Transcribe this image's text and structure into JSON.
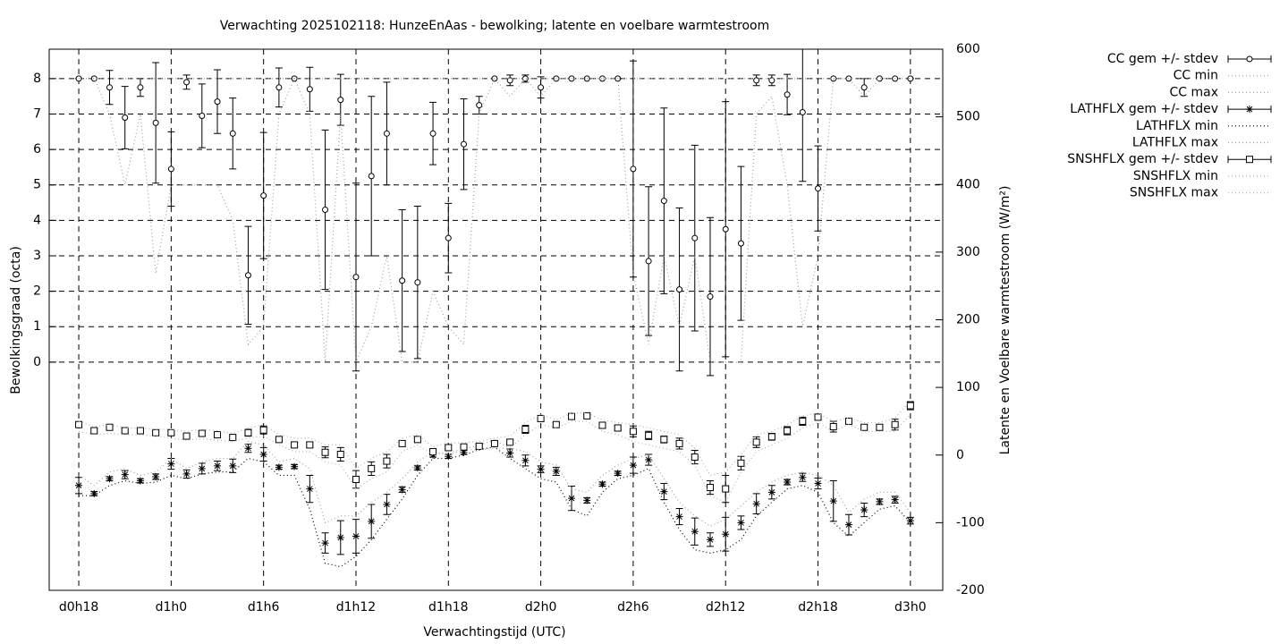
{
  "chart_data": {
    "type": "errorbar",
    "title": "Verwachting 2025102118: HunzeEnAas - bewolking; latente en voelbare warmtestroom",
    "xlabel": "Verwachtingstijd (UTC)",
    "ylabel": "Bewolkingsgraad (octa)",
    "y2label": "Latente en Voelbare warmtestroom (W/m²)",
    "grid": true,
    "legend": "outside-right",
    "xlim": [
      16.08,
      74.1
    ],
    "ylim": [
      -6.44,
      8.83
    ],
    "y2lim": [
      -200,
      600
    ],
    "xticks": [
      {
        "value": 18,
        "label": "d0h18"
      },
      {
        "value": 24,
        "label": "d1h0"
      },
      {
        "value": 30,
        "label": "d1h6"
      },
      {
        "value": 36,
        "label": "d1h12"
      },
      {
        "value": 42,
        "label": "d1h18"
      },
      {
        "value": 48,
        "label": "d2h0"
      },
      {
        "value": 54,
        "label": "d2h6"
      },
      {
        "value": 60,
        "label": "d2h12"
      },
      {
        "value": 66,
        "label": "d2h18"
      },
      {
        "value": 72,
        "label": "d3h0"
      }
    ],
    "yticks": [
      0,
      1,
      2,
      3,
      4,
      5,
      6,
      7,
      8
    ],
    "y2ticks": [
      -200,
      -100,
      0,
      100,
      200,
      300,
      400,
      500,
      600
    ],
    "x": [
      18,
      19,
      20,
      21,
      22,
      23,
      24,
      25,
      26,
      27,
      28,
      29,
      30,
      31,
      32,
      33,
      34,
      35,
      36,
      37,
      38,
      39,
      40,
      41,
      42,
      43,
      44,
      45,
      46,
      47,
      48,
      49,
      50,
      51,
      52,
      53,
      54,
      55,
      56,
      57,
      58,
      59,
      60,
      61,
      62,
      63,
      64,
      65,
      66,
      67,
      68,
      69,
      70,
      71,
      72
    ],
    "series": [
      {
        "name": "CC gem +/- stdev",
        "color": "#000000",
        "axis": "y",
        "style": "errorbars",
        "marker": "circle",
        "values": [
          8,
          8,
          7.75,
          6.9,
          7.75,
          6.75,
          5.45,
          7.9,
          6.95,
          7.35,
          6.45,
          2.45,
          4.7,
          7.75,
          8,
          7.7,
          4.3,
          7.4,
          2.4,
          5.25,
          6.45,
          2.3,
          2.25,
          6.45,
          3.5,
          6.15,
          7.25,
          8,
          7.95,
          8,
          7.75,
          8,
          8,
          8,
          8,
          8,
          5.45,
          2.85,
          4.55,
          2.05,
          3.5,
          1.85,
          3.75,
          3.35,
          7.95,
          7.95,
          7.55,
          7.05,
          4.9,
          8,
          8,
          7.75,
          8,
          8,
          8
        ],
        "errors": [
          0,
          0,
          0.48,
          0.88,
          0.25,
          1.7,
          1.05,
          0.2,
          0.9,
          0.9,
          1.0,
          1.38,
          1.78,
          0.55,
          0,
          0.62,
          2.25,
          0.72,
          2.65,
          2.25,
          1.45,
          2.0,
          2.15,
          0.88,
          0.98,
          1.28,
          0.25,
          0,
          0.15,
          0.1,
          0.3,
          0,
          0,
          0,
          0,
          0,
          3.05,
          2.1,
          2.62,
          2.3,
          2.62,
          2.23,
          3.6,
          2.17,
          0.15,
          0.15,
          0.57,
          1.95,
          1.2,
          0,
          0,
          0.25,
          0,
          0,
          0
        ]
      },
      {
        "name": "CC min",
        "color": "#a0a0a0",
        "axis": "y",
        "style": "dots",
        "values": [
          8,
          8,
          7,
          5,
          7,
          2.5,
          5,
          5,
          5,
          5,
          4,
          0.5,
          1,
          7,
          8,
          7,
          0,
          7,
          0,
          1,
          3,
          0,
          0,
          2,
          1,
          0.5,
          7,
          8,
          7.5,
          8,
          7.5,
          8,
          8,
          8,
          8,
          8,
          2.5,
          0.5,
          3,
          1,
          3,
          0,
          0,
          0,
          7,
          7.5,
          5,
          1,
          3,
          8,
          8,
          7.5,
          8,
          8,
          8
        ]
      },
      {
        "name": "CC max",
        "color": "#a0a0a0",
        "axis": "y",
        "style": "dots",
        "values": [
          8,
          8,
          8,
          8,
          8,
          8,
          8,
          8,
          8,
          8,
          8,
          8,
          8,
          8,
          8,
          8,
          8,
          8,
          8,
          8,
          8,
          8,
          8,
          8,
          8,
          8,
          8,
          8,
          8,
          8,
          8,
          8,
          8,
          8,
          8,
          8,
          8,
          8,
          8,
          8,
          8,
          8,
          8,
          8,
          8,
          8,
          8,
          8,
          8,
          8,
          8,
          8,
          8,
          8,
          8
        ]
      },
      {
        "name": "LATHFLX gem +/- stdev",
        "color": "#000000",
        "axis": "y2",
        "style": "errorbars",
        "marker": "star",
        "values": [
          -45,
          -57,
          -35,
          -29,
          -38,
          -32,
          -13,
          -28,
          -20,
          -16,
          -16,
          10,
          1,
          -18,
          -17,
          -50,
          -130,
          -122,
          -120,
          -98,
          -73,
          -51,
          -19,
          0,
          -2,
          4,
          12,
          17,
          3,
          -8,
          -21,
          -24,
          -64,
          -67,
          -43,
          -27,
          -15,
          -7,
          -54,
          -91,
          -113,
          -125,
          -117,
          -100,
          -72,
          -55,
          -40,
          -33,
          -42,
          -68,
          -103,
          -81,
          -69,
          -66,
          -97
        ],
        "errors": [
          12,
          3,
          3,
          6,
          3,
          4,
          8,
          6,
          8,
          7,
          10,
          6,
          10,
          3,
          3,
          20,
          15,
          25,
          25,
          25,
          15,
          4,
          3,
          3,
          3,
          3,
          3,
          3,
          6,
          8,
          5,
          6,
          18,
          4,
          3,
          3,
          12,
          8,
          12,
          12,
          20,
          10,
          25,
          10,
          15,
          10,
          4,
          6,
          8,
          30,
          15,
          10,
          4,
          5,
          5
        ]
      },
      {
        "name": "LATHFLX min",
        "color": "#000000",
        "axis": "y2",
        "style": "dots",
        "values": [
          -60,
          -60,
          -45,
          -38,
          -42,
          -40,
          -30,
          -35,
          -28,
          -25,
          -25,
          -5,
          -10,
          -30,
          -30,
          -80,
          -160,
          -165,
          -150,
          -125,
          -95,
          -65,
          -30,
          -5,
          -5,
          0,
          8,
          12,
          -5,
          -20,
          -35,
          -40,
          -80,
          -90,
          -55,
          -35,
          -30,
          -20,
          -70,
          -110,
          -140,
          -145,
          -140,
          -125,
          -90,
          -70,
          -50,
          -45,
          -55,
          -100,
          -120,
          -100,
          -80,
          -75,
          -100
        ]
      },
      {
        "name": "LATHFLX max",
        "color": "#a0a0a0",
        "axis": "y2",
        "style": "dots",
        "values": [
          -30,
          -45,
          -25,
          -20,
          -30,
          -25,
          -5,
          -20,
          -10,
          -5,
          -5,
          20,
          15,
          -10,
          -5,
          -20,
          -100,
          -90,
          -90,
          -70,
          -55,
          -35,
          -10,
          5,
          0,
          8,
          15,
          22,
          10,
          5,
          -10,
          -15,
          -50,
          -55,
          -30,
          -15,
          -5,
          0,
          -35,
          -70,
          -90,
          -105,
          -95,
          -75,
          -55,
          -40,
          -30,
          -25,
          -30,
          -45,
          -85,
          -65,
          -55,
          -55,
          -85
        ]
      },
      {
        "name": "SNSHFLX gem +/- stdev",
        "color": "#000000",
        "axis": "y2",
        "style": "errorbars",
        "marker": "square",
        "values": [
          45,
          36,
          41,
          36,
          36,
          33,
          33,
          28,
          32,
          30,
          26,
          33,
          37,
          23,
          15,
          15,
          4,
          1,
          -36,
          -20,
          -9,
          17,
          23,
          5,
          11,
          12,
          13,
          17,
          19,
          38,
          54,
          45,
          57,
          58,
          44,
          40,
          35,
          29,
          23,
          17,
          -3,
          -48,
          -50,
          -12,
          19,
          27,
          36,
          50,
          56,
          42,
          50,
          41,
          41,
          45,
          73
        ],
        "errors": [
          4,
          3,
          3,
          3,
          3,
          3,
          3,
          3,
          4,
          4,
          3,
          5,
          6,
          3,
          3,
          4,
          8,
          10,
          13,
          10,
          10,
          4,
          3,
          3,
          3,
          3,
          3,
          3,
          3,
          6,
          4,
          3,
          3,
          3,
          3,
          3,
          8,
          6,
          5,
          8,
          10,
          10,
          20,
          10,
          8,
          5,
          6,
          6,
          4,
          8,
          4,
          3,
          3,
          8,
          6
        ]
      },
      {
        "name": "SNSHFLX min",
        "color": "#b0b0b0",
        "axis": "y2",
        "style": "dots",
        "values": [
          35,
          30,
          32,
          30,
          30,
          28,
          25,
          22,
          24,
          22,
          20,
          25,
          28,
          15,
          5,
          5,
          -10,
          -15,
          -50,
          -35,
          -25,
          5,
          15,
          0,
          5,
          8,
          8,
          10,
          10,
          30,
          45,
          40,
          50,
          50,
          35,
          30,
          20,
          15,
          10,
          5,
          -15,
          -60,
          -70,
          -25,
          5,
          15,
          25,
          40,
          48,
          35,
          45,
          35,
          35,
          35,
          60
        ]
      },
      {
        "name": "SNSHFLX max",
        "color": "#b0b0b0",
        "axis": "y2",
        "style": "dots",
        "values": [
          50,
          42,
          45,
          40,
          40,
          38,
          38,
          35,
          38,
          36,
          32,
          40,
          45,
          30,
          25,
          25,
          15,
          15,
          -20,
          -5,
          5,
          25,
          30,
          12,
          18,
          18,
          20,
          25,
          28,
          48,
          60,
          52,
          62,
          62,
          52,
          48,
          45,
          40,
          35,
          30,
          10,
          -30,
          -25,
          0,
          30,
          35,
          45,
          58,
          62,
          50,
          55,
          48,
          48,
          55,
          80
        ]
      }
    ]
  }
}
